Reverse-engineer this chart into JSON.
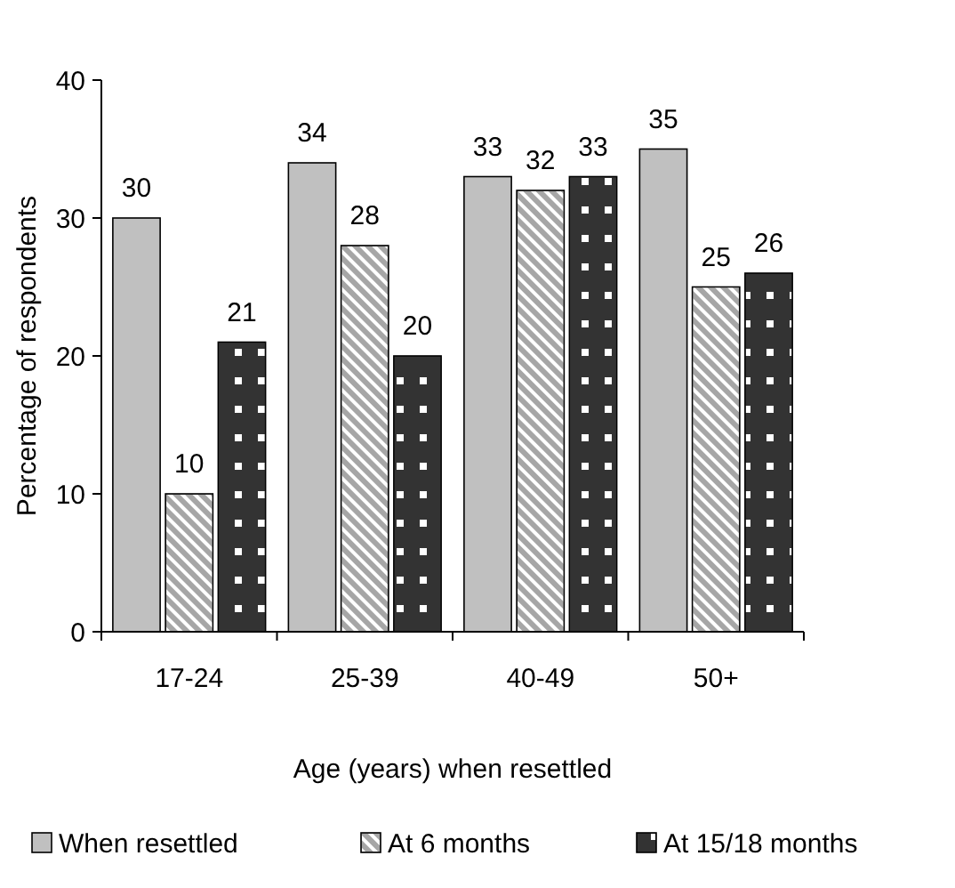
{
  "chart_data": {
    "type": "bar",
    "xlabel": "Age (years) when resettled",
    "ylabel": "Percentage of respondents",
    "categories": [
      "17-24",
      "25-39",
      "40-49",
      "50+"
    ],
    "series": [
      {
        "name": "When resettled",
        "color": "#c0c0c0",
        "values": [
          30,
          34,
          33,
          35
        ]
      },
      {
        "name": "At 6 months",
        "color": "#a6a6a6",
        "values": [
          10,
          28,
          32,
          25
        ]
      },
      {
        "name": "At 15/18 months",
        "color": "#333333",
        "values": [
          21,
          20,
          33,
          26
        ]
      }
    ],
    "ylim": [
      0,
      40
    ],
    "yticks": [
      0,
      10,
      20,
      30,
      40
    ],
    "data_labels": true,
    "legend": "bottom",
    "grid": false
  }
}
